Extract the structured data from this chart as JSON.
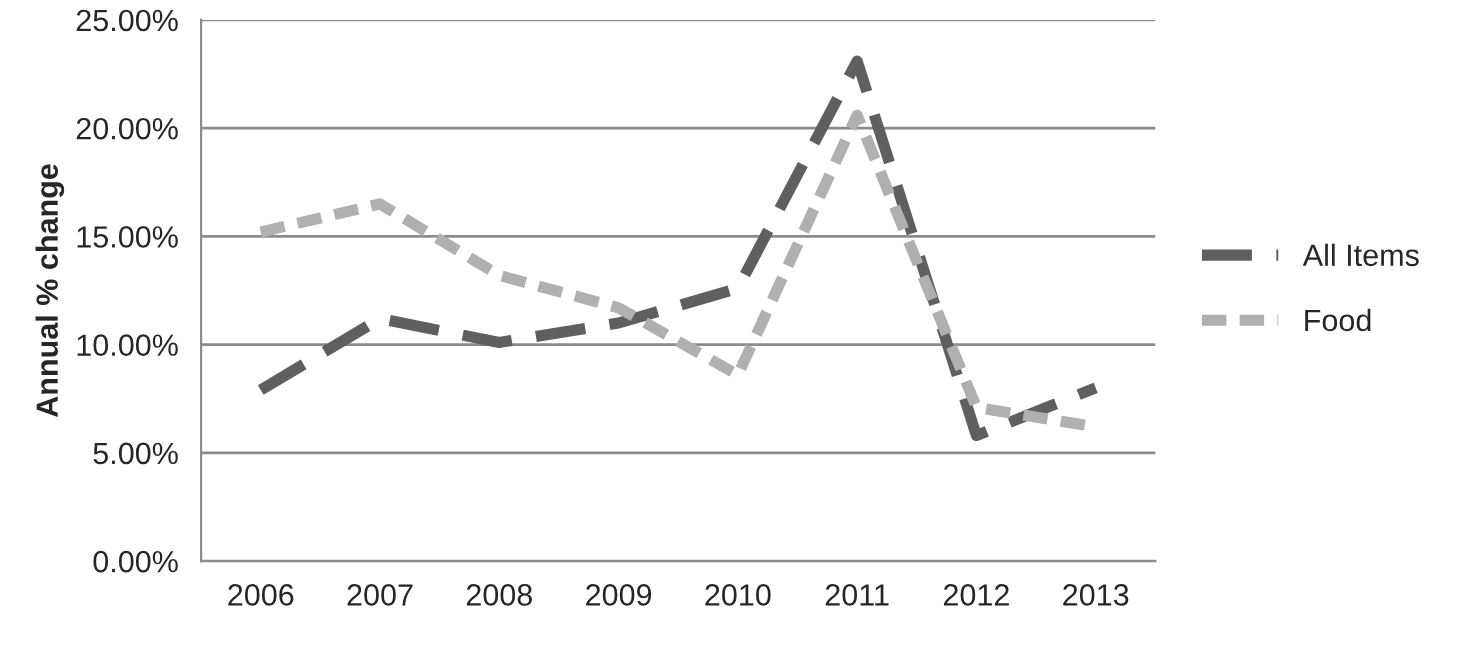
{
  "chart_data": {
    "type": "line",
    "ylabel": "Annual % change",
    "categories": [
      "2006",
      "2007",
      "2008",
      "2009",
      "2010",
      "2011",
      "2012",
      "2013"
    ],
    "series": [
      {
        "name": "All Items",
        "color": "#5f5f5f",
        "line_style": "dashed",
        "values": [
          7.9,
          11.2,
          10.1,
          11.0,
          12.6,
          23.1,
          5.8,
          8.0
        ]
      },
      {
        "name": "Food",
        "color": "#b0b0b0",
        "line_style": "dotted",
        "values": [
          15.2,
          16.5,
          13.2,
          11.7,
          8.6,
          20.6,
          7.1,
          6.2
        ]
      }
    ],
    "ylim": [
      0,
      25
    ],
    "yticks": [
      {
        "value": 0,
        "label": "0.00%"
      },
      {
        "value": 5,
        "label": "5.00%"
      },
      {
        "value": 10,
        "label": "10.00%"
      },
      {
        "value": 15,
        "label": "15.00%"
      },
      {
        "value": 20,
        "label": "20.00%"
      },
      {
        "value": 25,
        "label": "25.00%"
      }
    ],
    "grid": "y",
    "legend": "right",
    "marker": "none"
  }
}
